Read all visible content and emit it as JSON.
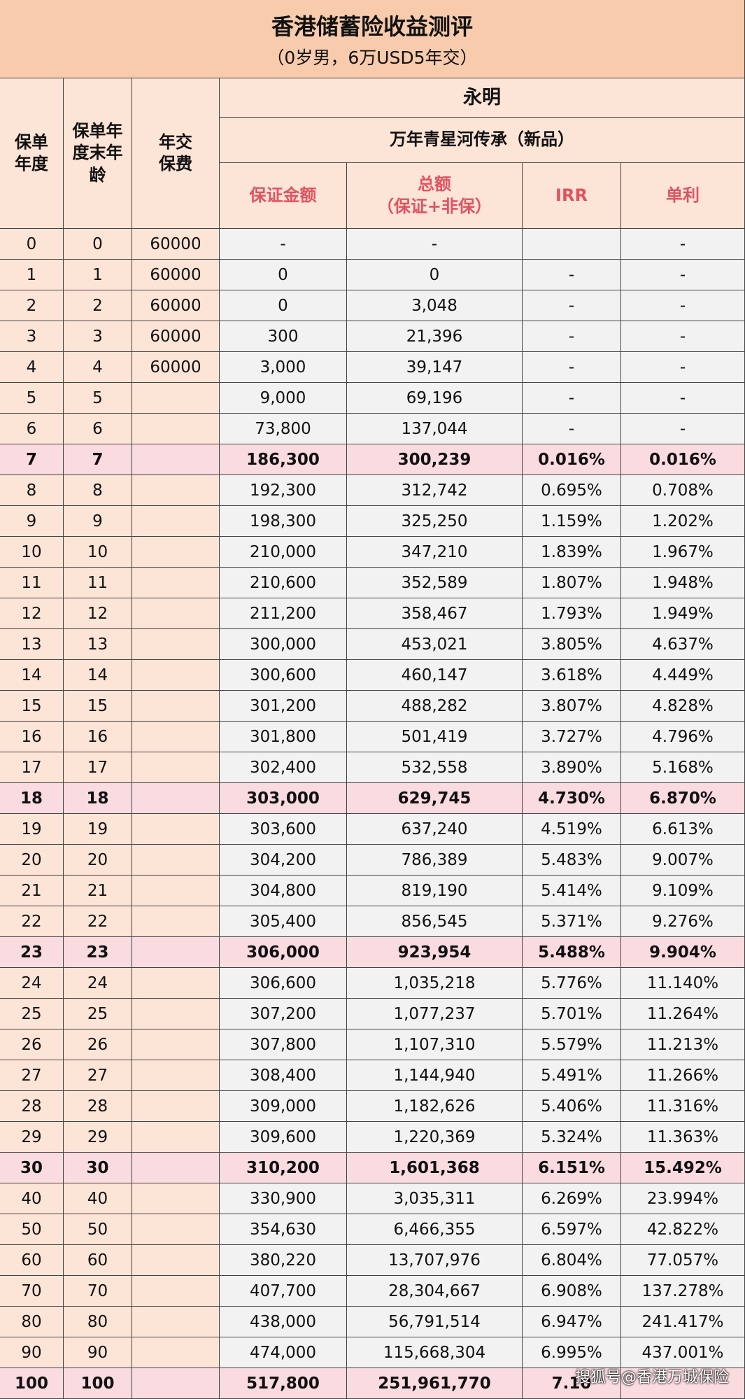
{
  "header": {
    "title": "香港储蓄险收益测评",
    "subtitle": "（0岁男，6万USD5年交）"
  },
  "table": {
    "columns": [
      "保单\n年度",
      "保单年\n度末年\n龄",
      "年交\n保费"
    ],
    "company": "永明",
    "product": "万年青星河传承（新品）",
    "subcolumns": [
      "保证金额",
      "总额\n（保证+非保）",
      "IRR",
      "单利"
    ],
    "rows": [
      {
        "cells": [
          "0",
          "0",
          "60000",
          "-",
          "-",
          null,
          "-"
        ]
      },
      {
        "cells": [
          "1",
          "1",
          "60000",
          "0",
          "0",
          "-",
          "-"
        ]
      },
      {
        "cells": [
          "2",
          "2",
          "60000",
          "0",
          "3,048",
          "-",
          "-"
        ]
      },
      {
        "cells": [
          "3",
          "3",
          "60000",
          "300",
          "21,396",
          "-",
          "-"
        ]
      },
      {
        "cells": [
          "4",
          "4",
          "60000",
          "3,000",
          "39,147",
          "-",
          "-"
        ]
      },
      {
        "cells": [
          "5",
          "5",
          null,
          "9,000",
          "69,196",
          "-",
          "-"
        ]
      },
      {
        "cells": [
          "6",
          "6",
          null,
          "73,800",
          "137,044",
          "-",
          "-"
        ]
      },
      {
        "cells": [
          "7",
          "7",
          null,
          "186,300",
          "300,239",
          "0.016%",
          "0.016%"
        ],
        "bold": true
      },
      {
        "cells": [
          "8",
          "8",
          null,
          "192,300",
          "312,742",
          "0.695%",
          "0.708%"
        ]
      },
      {
        "cells": [
          "9",
          "9",
          null,
          "198,300",
          "325,250",
          "1.159%",
          "1.202%"
        ]
      },
      {
        "cells": [
          "10",
          "10",
          null,
          "210,000",
          "347,210",
          "1.839%",
          "1.967%"
        ]
      },
      {
        "cells": [
          "11",
          "11",
          null,
          "210,600",
          "352,589",
          "1.807%",
          "1.948%"
        ]
      },
      {
        "cells": [
          "12",
          "12",
          null,
          "211,200",
          "358,467",
          "1.793%",
          "1.949%"
        ]
      },
      {
        "cells": [
          "13",
          "13",
          null,
          "300,000",
          "453,021",
          "3.805%",
          "4.637%"
        ]
      },
      {
        "cells": [
          "14",
          "14",
          null,
          "300,600",
          "460,147",
          "3.618%",
          "4.449%"
        ]
      },
      {
        "cells": [
          "15",
          "15",
          null,
          "301,200",
          "488,282",
          "3.807%",
          "4.828%"
        ]
      },
      {
        "cells": [
          "16",
          "16",
          null,
          "301,800",
          "501,419",
          "3.727%",
          "4.796%"
        ]
      },
      {
        "cells": [
          "17",
          "17",
          null,
          "302,400",
          "532,558",
          "3.890%",
          "5.168%"
        ]
      },
      {
        "cells": [
          "18",
          "18",
          null,
          "303,000",
          "629,745",
          "4.730%",
          "6.870%"
        ],
        "bold": true
      },
      {
        "cells": [
          "19",
          "19",
          null,
          "303,600",
          "637,240",
          "4.519%",
          "6.613%"
        ]
      },
      {
        "cells": [
          "20",
          "20",
          null,
          "304,200",
          "786,389",
          "5.483%",
          "9.007%"
        ]
      },
      {
        "cells": [
          "21",
          "21",
          null,
          "304,800",
          "819,190",
          "5.414%",
          "9.109%"
        ]
      },
      {
        "cells": [
          "22",
          "22",
          null,
          "305,400",
          "856,545",
          "5.371%",
          "9.276%"
        ]
      },
      {
        "cells": [
          "23",
          "23",
          null,
          "306,000",
          "923,954",
          "5.488%",
          "9.904%"
        ],
        "bold": true
      },
      {
        "cells": [
          "24",
          "24",
          null,
          "306,600",
          "1,035,218",
          "5.776%",
          "11.140%"
        ]
      },
      {
        "cells": [
          "25",
          "25",
          null,
          "307,200",
          "1,077,237",
          "5.701%",
          "11.264%"
        ]
      },
      {
        "cells": [
          "26",
          "26",
          null,
          "307,800",
          "1,107,310",
          "5.579%",
          "11.213%"
        ]
      },
      {
        "cells": [
          "27",
          "27",
          null,
          "308,400",
          "1,144,940",
          "5.491%",
          "11.266%"
        ]
      },
      {
        "cells": [
          "28",
          "28",
          null,
          "309,000",
          "1,182,626",
          "5.406%",
          "11.316%"
        ]
      },
      {
        "cells": [
          "29",
          "29",
          null,
          "309,600",
          "1,220,369",
          "5.324%",
          "11.363%"
        ]
      },
      {
        "cells": [
          "30",
          "30",
          null,
          "310,200",
          "1,601,368",
          "6.151%",
          "15.492%"
        ],
        "bold": true
      },
      {
        "cells": [
          "40",
          "40",
          null,
          "330,900",
          "3,035,311",
          "6.269%",
          "23.994%"
        ]
      },
      {
        "cells": [
          "50",
          "50",
          null,
          "354,630",
          "6,466,355",
          "6.597%",
          "42.822%"
        ]
      },
      {
        "cells": [
          "60",
          "60",
          null,
          "380,220",
          "13,707,976",
          "6.804%",
          "77.057%"
        ]
      },
      {
        "cells": [
          "70",
          "70",
          null,
          "407,700",
          "28,304,667",
          "6.908%",
          "137.278%"
        ]
      },
      {
        "cells": [
          "80",
          "80",
          null,
          "438,000",
          "56,791,514",
          "6.947%",
          "241.417%"
        ]
      },
      {
        "cells": [
          "90",
          "90",
          null,
          "474,000",
          "115,668,304",
          "6.995%",
          "437.001%"
        ]
      },
      {
        "cells": [
          "100",
          "100",
          null,
          "517,800",
          "251,961,770",
          "7.10",
          null
        ],
        "bold": true
      }
    ]
  },
  "watermark": "搜狐号@香港万城保险"
}
